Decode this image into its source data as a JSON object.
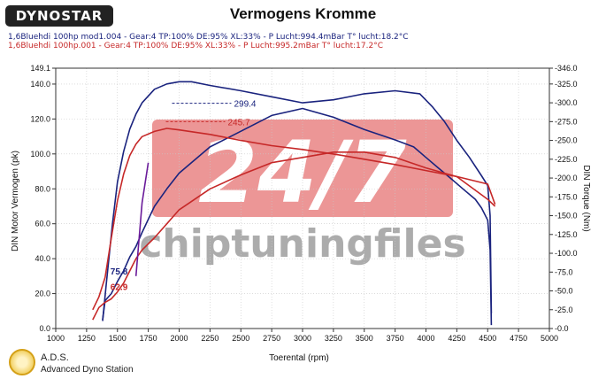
{
  "header": {
    "logo": "DYNOSTAR",
    "title": "Vermogens Kromme",
    "run1": "1,6Bluehdi 100hp mod1.004 - Gear:4 TP:100% DE:95% XL:33%   - P Lucht:994.4mBar T° lucht:18.2°C",
    "run2": "1,6Bluehdi 100hp.001 - Gear:4 TP:100% DE:95% XL:33%   - P Lucht:995.2mBar T° lucht:17.2°C"
  },
  "watermark": {
    "big": "24/7",
    "word": "chiptuningfiles"
  },
  "footer": {
    "brand": "A.D.S.",
    "subtitle": "Advanced Dyno Station"
  },
  "colors": {
    "run1": "#1a237e",
    "run2": "#c62828",
    "watermark_red": "#e57373",
    "watermark_gray": "#9e9e9e"
  },
  "chart_data": {
    "type": "line",
    "xlabel": "Toerental (rpm)",
    "ylabel": "DIN Motor Vermogen (pk)",
    "y2label": "DIN Torque (Nm)",
    "xlim": [
      1000,
      5000
    ],
    "ylim": [
      0,
      149.1
    ],
    "y2lim": [
      0,
      -346.0
    ],
    "x_ticks": [
      1000,
      1250,
      1500,
      1750,
      2000,
      2250,
      2500,
      2750,
      3000,
      3250,
      3500,
      3750,
      4000,
      4250,
      4500,
      4750,
      5000
    ],
    "y_ticks": [
      0,
      20,
      40,
      60,
      80,
      100,
      120,
      140,
      149.1
    ],
    "y_tick_labels": [
      "0.0",
      "20.0",
      "40.0",
      "60.0",
      "80.0",
      "100.0",
      "120.0",
      "140.0",
      "149.1"
    ],
    "y2_ticks": [
      0,
      -25,
      -50,
      -75,
      -100,
      -125,
      -150,
      -175,
      -200,
      -225,
      -250,
      -275,
      -300,
      -325,
      -346
    ],
    "y2_tick_labels": [
      "-0.0",
      "-25.0",
      "-50.0",
      "-75.0",
      "-100.0",
      "-125.0",
      "-150.0",
      "-175.0",
      "-200.0",
      "-225.0",
      "-250.0",
      "-275.0",
      "-300.0",
      "-325.0",
      "-346.0"
    ],
    "grid": true,
    "series": [
      {
        "axis": "y2",
        "color": "#1a237e",
        "x": [
          1380,
          1410,
          1460,
          1500,
          1550,
          1600,
          1650,
          1700,
          1800,
          1900,
          2000,
          2100,
          2250,
          2500,
          2750,
          3000,
          3250,
          3500,
          3750,
          3950,
          4050,
          4150,
          4250,
          4350,
          4450,
          4500,
          4520,
          4530
        ],
        "y": [
          -10,
          -60,
          -140,
          -195,
          -235,
          -265,
          -285,
          -300,
          -318,
          -325,
          -328,
          -328,
          -323,
          -316,
          -308,
          -300,
          -304,
          -312,
          -316,
          -312,
          -295,
          -275,
          -250,
          -228,
          -203,
          -190,
          -150,
          -20
        ]
      },
      {
        "axis": "y1",
        "color": "#1a237e",
        "x": [
          1380,
          1400,
          1450,
          1500,
          1550,
          1600,
          1650,
          1700,
          1800,
          1900,
          2000,
          2250,
          2500,
          2750,
          3000,
          3250,
          3500,
          3750,
          3900,
          4000,
          4100,
          4200,
          4300,
          4400,
          4450,
          4500,
          4520,
          4530
        ],
        "y": [
          5,
          16,
          20,
          27,
          33,
          41,
          47,
          55,
          70,
          80,
          89,
          104,
          113,
          122,
          126,
          121,
          114,
          108,
          104,
          98,
          92,
          86,
          80,
          74,
          69,
          62,
          45,
          2
        ]
      },
      {
        "axis": "y2",
        "color": "#c62828",
        "x": [
          1300,
          1350,
          1400,
          1450,
          1500,
          1550,
          1600,
          1650,
          1700,
          1800,
          1900,
          2000,
          2250,
          2500,
          2750,
          3000,
          3250,
          3500,
          3750,
          4000,
          4250,
          4500,
          4560
        ],
        "y": [
          -25,
          -42,
          -68,
          -120,
          -170,
          -205,
          -230,
          -245,
          -255,
          -262,
          -266,
          -264,
          -258,
          -250,
          -243,
          -238,
          -232,
          -225,
          -218,
          -210,
          -202,
          -192,
          -165
        ]
      },
      {
        "axis": "y1",
        "color": "#c62828",
        "x": [
          1300,
          1350,
          1400,
          1450,
          1500,
          1550,
          1600,
          1650,
          1700,
          1800,
          1900,
          2000,
          2250,
          2500,
          2750,
          3000,
          3250,
          3500,
          3750,
          4000,
          4250,
          4500,
          4560
        ],
        "y": [
          5,
          12,
          15,
          17,
          21,
          26,
          33,
          40,
          45,
          52,
          60,
          68,
          80,
          88,
          95,
          98,
          101,
          101,
          98,
          92,
          87,
          74,
          70
        ]
      },
      {
        "axis": "y1",
        "color": "#6a1b9a",
        "x": [
          1650,
          1700,
          1750
        ],
        "y": [
          30,
          72,
          95
        ]
      }
    ],
    "annotations": [
      {
        "text": "299.4",
        "axis": "y2",
        "x": 2050,
        "y": -299.4,
        "color": "#1a237e"
      },
      {
        "text": "245.7",
        "axis": "y2",
        "x": 2000,
        "y": -275,
        "color": "#c62828"
      },
      {
        "text": "75.8",
        "axis": "y1",
        "x": 1400,
        "y": 33,
        "color": "#1a237e"
      },
      {
        "text": "62.9",
        "axis": "y1",
        "x": 1400,
        "y": 24,
        "color": "#c62828"
      }
    ]
  }
}
